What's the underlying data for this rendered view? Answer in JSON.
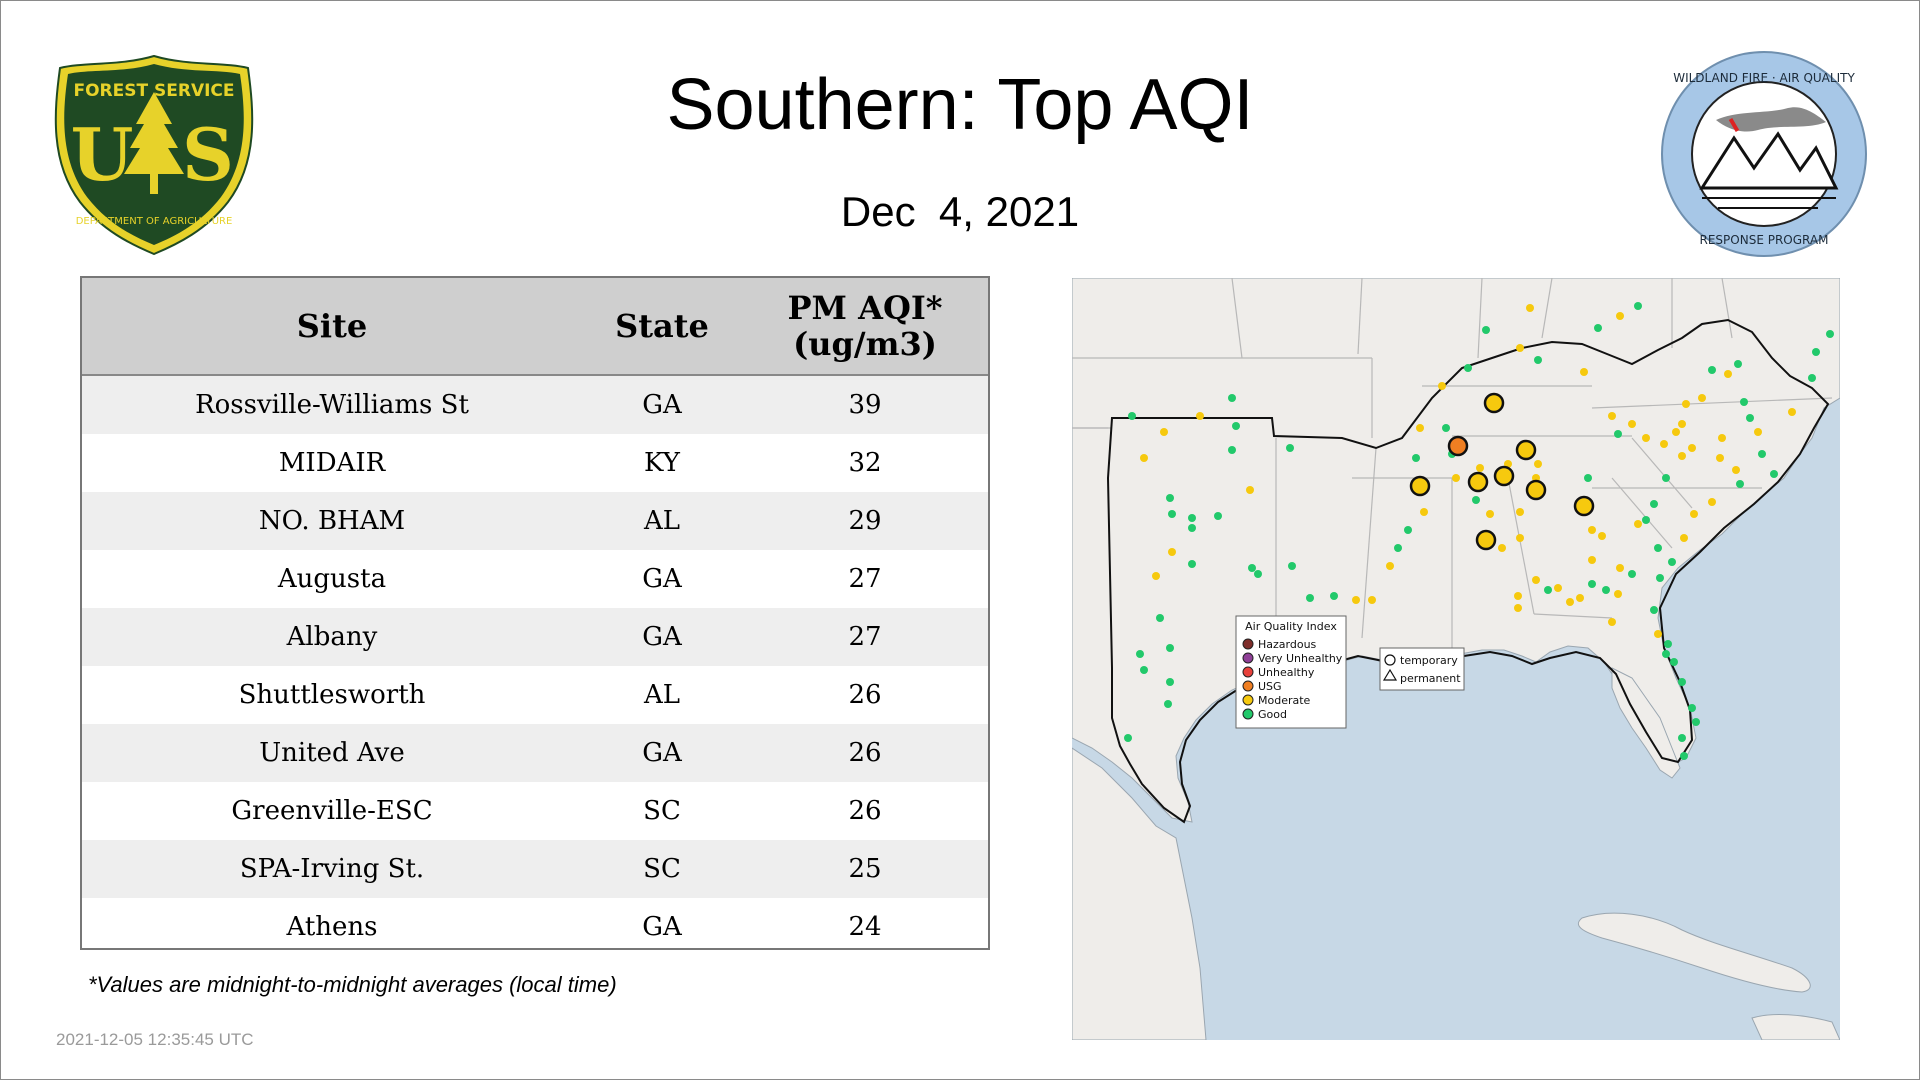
{
  "header": {
    "title": "Southern: Top AQI",
    "date": "Dec  4, 2021"
  },
  "logos": {
    "forest_service": {
      "top_text": "FOREST SERVICE",
      "letters": "U S",
      "bottom_text": "DEPARTMENT OF AGRICULTURE",
      "green": "#1f4a23",
      "gold": "#e7d22a"
    },
    "wildland_fire": {
      "top_text": "WILDLAND FIRE · AIR QUALITY",
      "bottom_text": "RESPONSE PROGRAM",
      "ring": "#a7c7e7"
    }
  },
  "table": {
    "columns": {
      "site": "Site",
      "state": "State",
      "pm_line1": "PM AQI*",
      "pm_line2": "(ug/m3)"
    },
    "rows": [
      {
        "site": "Rossville-Williams St",
        "state": "GA",
        "value": "39"
      },
      {
        "site": "MIDAIR",
        "state": "KY",
        "value": "32"
      },
      {
        "site": "NO. BHAM",
        "state": "AL",
        "value": "29"
      },
      {
        "site": "Augusta",
        "state": "GA",
        "value": "27"
      },
      {
        "site": "Albany",
        "state": "GA",
        "value": "27"
      },
      {
        "site": "Shuttlesworth",
        "state": "AL",
        "value": "26"
      },
      {
        "site": "United Ave",
        "state": "GA",
        "value": "26"
      },
      {
        "site": "Greenville-ESC",
        "state": "SC",
        "value": "26"
      },
      {
        "site": "SPA-Irving St.",
        "state": "SC",
        "value": "25"
      },
      {
        "site": "Athens",
        "state": "GA",
        "value": "24"
      }
    ]
  },
  "footnote": "*Values are midnight-to-midnight averages (local time)",
  "timestamp": "2021-12-05 12:35:45 UTC",
  "map": {
    "legend": {
      "title": "Air Quality Index",
      "items": [
        {
          "label": "Hazardous",
          "color": "#7e2d2a"
        },
        {
          "label": "Very Unhealthy",
          "color": "#8f3f97"
        },
        {
          "label": "Unhealthy",
          "color": "#e8413b"
        },
        {
          "label": "USG",
          "color": "#f07f22"
        },
        {
          "label": "Moderate",
          "color": "#f6c90e"
        },
        {
          "label": "Good",
          "color": "#22c96b"
        }
      ]
    },
    "shape_legend": {
      "temporary": "temporary",
      "permanent": "permanent"
    },
    "colors": {
      "land": "#efedea",
      "water": "#c7d8e6",
      "border": "#b8b8b8"
    }
  }
}
